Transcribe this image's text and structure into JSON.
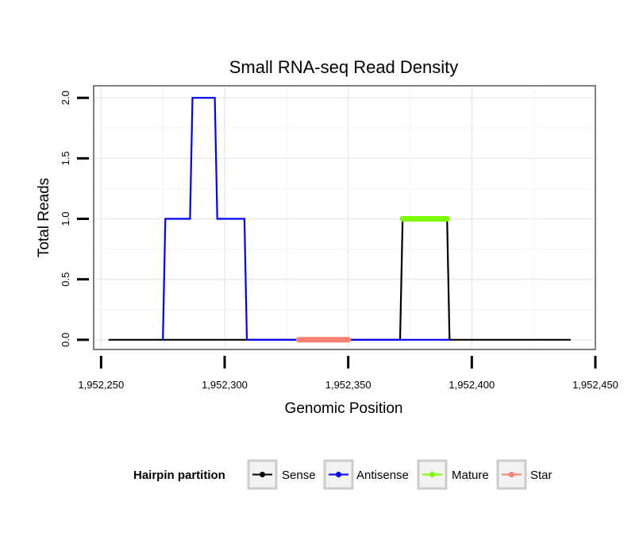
{
  "chart_data": {
    "type": "line",
    "title": "Small RNA-seq Read Density",
    "xlabel": "Genomic Position",
    "ylabel": "Total Reads",
    "xlim": [
      1952247,
      1952450
    ],
    "ylim": [
      -0.08,
      2.1
    ],
    "x_ticks": [
      1952250,
      1952300,
      1952350,
      1952400,
      1952450
    ],
    "x_tick_labels": [
      "1,952,250",
      "1,952,300",
      "1,952,350",
      "1,952,400",
      "1,952,450"
    ],
    "y_ticks": [
      0,
      0.5,
      1,
      1.5,
      2
    ],
    "y_tick_labels": [
      "0.0",
      "0.5",
      "1.0",
      "1.5",
      "2.0"
    ],
    "grid": true,
    "series": [
      {
        "name": "Sense",
        "color": "#000000",
        "line_weight": "normal",
        "x": [
          1952253,
          1952371,
          1952372,
          1952390,
          1952391,
          1952440
        ],
        "y": [
          0,
          0,
          1,
          1,
          0,
          0
        ]
      },
      {
        "name": "Antisense",
        "color": "#0000ff",
        "line_weight": "normal",
        "x": [
          1952275,
          1952276,
          1952286,
          1952287,
          1952296,
          1952297,
          1952308,
          1952309,
          1952371,
          1952391
        ],
        "y": [
          0,
          1,
          1,
          2,
          2,
          1,
          1,
          0,
          0,
          0
        ]
      },
      {
        "name": "Mature",
        "color": "#7cfc00",
        "line_weight": "thick",
        "x": [
          1952372,
          1952390
        ],
        "y": [
          1,
          1
        ]
      },
      {
        "name": "Star",
        "color": "#fa8072",
        "line_weight": "thick",
        "x": [
          1952330,
          1952350
        ],
        "y": [
          0,
          0
        ]
      }
    ],
    "legend": {
      "title": "Hairpin partition",
      "position": "bottom",
      "entries": [
        "Sense",
        "Antisense",
        "Mature",
        "Star"
      ]
    }
  }
}
